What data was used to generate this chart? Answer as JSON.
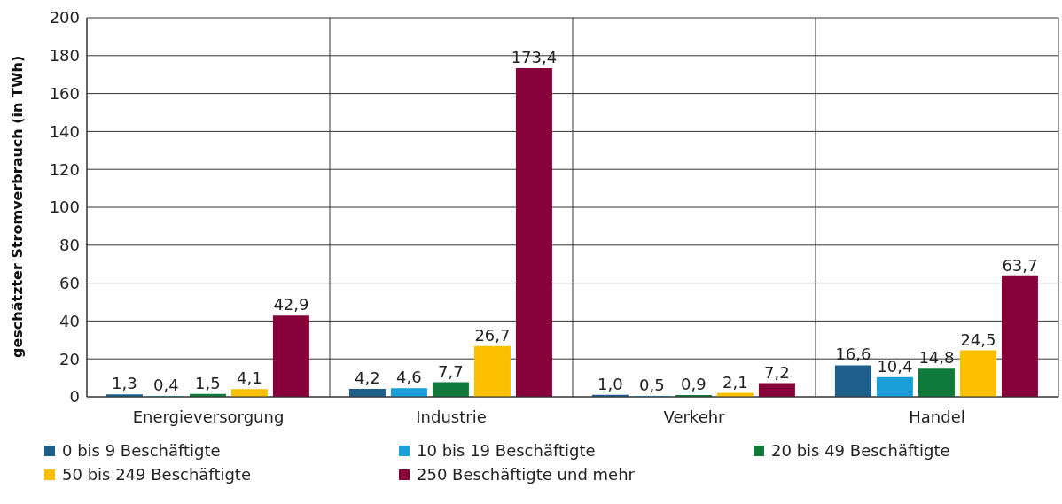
{
  "chart_data": {
    "type": "bar",
    "ylabel": "geschätzter Stromverbrauch (in TWh)",
    "categories": [
      "Energieversorgung",
      "Industrie",
      "Verkehr",
      "Handel"
    ],
    "series": [
      {
        "name": "0 bis 9 Beschäftigte",
        "color": "#1d5f8a",
        "values": [
          1.3,
          4.2,
          1.0,
          16.6
        ],
        "value_labels": [
          "1,3",
          "4,2",
          "1,0",
          "16,6"
        ]
      },
      {
        "name": "10 bis 19 Beschäftigte",
        "color": "#1a9fd9",
        "values": [
          0.4,
          4.6,
          0.5,
          10.4
        ],
        "value_labels": [
          "0,4",
          "4,6",
          "0,5",
          "10,4"
        ]
      },
      {
        "name": "20 bis 49 Beschäftigte",
        "color": "#0f7a3a",
        "values": [
          1.5,
          7.7,
          0.9,
          14.8
        ],
        "value_labels": [
          "1,5",
          "7,7",
          "0,9",
          "14,8"
        ]
      },
      {
        "name": "50 bis 249 Beschäftigte",
        "color": "#fbbf00",
        "values": [
          4.1,
          26.7,
          2.1,
          24.5
        ],
        "value_labels": [
          "4,1",
          "26,7",
          "2,1",
          "24,5"
        ]
      },
      {
        "name": "250 Beschäftigte und mehr",
        "color": "#86003a",
        "values": [
          42.9,
          173.4,
          7.2,
          63.7
        ],
        "value_labels": [
          "42,9",
          "173,4",
          "7,2",
          "63,7"
        ]
      }
    ],
    "ylim": [
      0,
      200
    ],
    "yticks": [
      0,
      20,
      40,
      60,
      80,
      100,
      120,
      140,
      160,
      180,
      200
    ],
    "grid": true,
    "legend": "bottom"
  }
}
